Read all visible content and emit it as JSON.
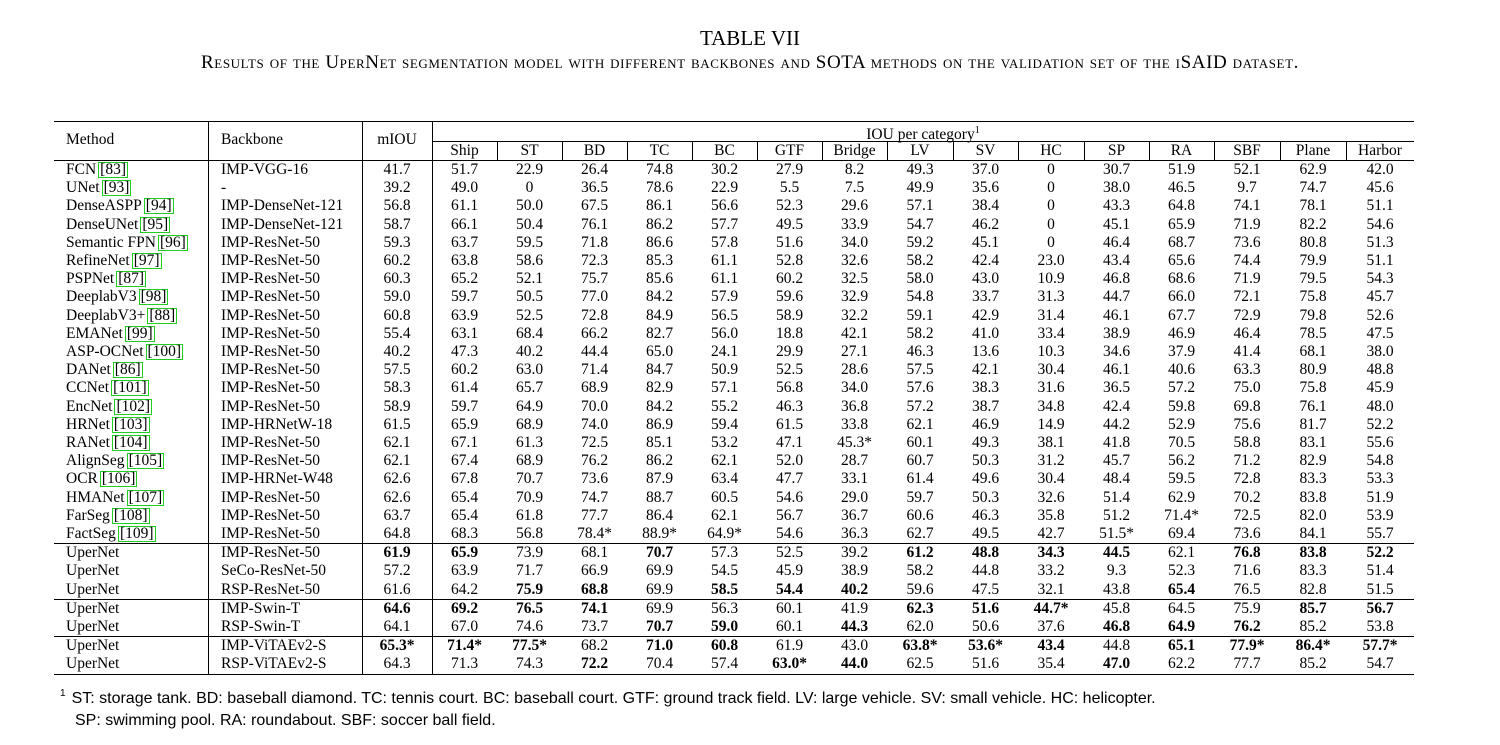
{
  "title": "TABLE VII",
  "caption": "Results of the UperNet segmentation model with different backbones and SOTA methods on the validation set of the iSAID dataset.",
  "headers": {
    "method": "Method",
    "backbone": "Backbone",
    "miou": "mIOU",
    "iou_group": "IOU per category",
    "iou_group_note": "1",
    "categories": [
      "Ship",
      "ST",
      "BD",
      "TC",
      "BC",
      "GTF",
      "Bridge",
      "LV",
      "SV",
      "HC",
      "SP",
      "RA",
      "SBF",
      "Plane",
      "Harbor"
    ]
  },
  "groups": [
    [
      {
        "method": "FCN",
        "ref": "83",
        "backbone": "IMP-VGG-16",
        "values": [
          "41.7",
          "51.7",
          "22.9",
          "26.4",
          "74.8",
          "30.2",
          "27.9",
          "8.2",
          "49.3",
          "37.0",
          "0",
          "30.7",
          "51.9",
          "52.1",
          "62.9",
          "42.0"
        ],
        "bold": []
      },
      {
        "method": "UNet",
        "ref": "93",
        "backbone": "-",
        "values": [
          "39.2",
          "49.0",
          "0",
          "36.5",
          "78.6",
          "22.9",
          "5.5",
          "7.5",
          "49.9",
          "35.6",
          "0",
          "38.0",
          "46.5",
          "9.7",
          "74.7",
          "45.6"
        ],
        "bold": []
      },
      {
        "method": "DenseASPP",
        "ref": "94",
        "backbone": "IMP-DenseNet-121",
        "values": [
          "56.8",
          "61.1",
          "50.0",
          "67.5",
          "86.1",
          "56.6",
          "52.3",
          "29.6",
          "57.1",
          "38.4",
          "0",
          "43.3",
          "64.8",
          "74.1",
          "78.1",
          "51.1"
        ],
        "bold": []
      },
      {
        "method": "DenseUNet",
        "ref": "95",
        "backbone": "IMP-DenseNet-121",
        "values": [
          "58.7",
          "66.1",
          "50.4",
          "76.1",
          "86.2",
          "57.7",
          "49.5",
          "33.9",
          "54.7",
          "46.2",
          "0",
          "45.1",
          "65.9",
          "71.9",
          "82.2",
          "54.6"
        ],
        "bold": []
      },
      {
        "method": "Semantic FPN",
        "ref": "96",
        "backbone": "IMP-ResNet-50",
        "values": [
          "59.3",
          "63.7",
          "59.5",
          "71.8",
          "86.6",
          "57.8",
          "51.6",
          "34.0",
          "59.2",
          "45.1",
          "0",
          "46.4",
          "68.7",
          "73.6",
          "80.8",
          "51.3"
        ],
        "bold": []
      },
      {
        "method": "RefineNet",
        "ref": "97",
        "backbone": "IMP-ResNet-50",
        "values": [
          "60.2",
          "63.8",
          "58.6",
          "72.3",
          "85.3",
          "61.1",
          "52.8",
          "32.6",
          "58.2",
          "42.4",
          "23.0",
          "43.4",
          "65.6",
          "74.4",
          "79.9",
          "51.1"
        ],
        "bold": []
      },
      {
        "method": "PSPNet",
        "ref": "87",
        "backbone": "IMP-ResNet-50",
        "values": [
          "60.3",
          "65.2",
          "52.1",
          "75.7",
          "85.6",
          "61.1",
          "60.2",
          "32.5",
          "58.0",
          "43.0",
          "10.9",
          "46.8",
          "68.6",
          "71.9",
          "79.5",
          "54.3"
        ],
        "bold": []
      },
      {
        "method": "DeeplabV3",
        "ref": "98",
        "backbone": "IMP-ResNet-50",
        "values": [
          "59.0",
          "59.7",
          "50.5",
          "77.0",
          "84.2",
          "57.9",
          "59.6",
          "32.9",
          "54.8",
          "33.7",
          "31.3",
          "44.7",
          "66.0",
          "72.1",
          "75.8",
          "45.7"
        ],
        "bold": []
      },
      {
        "method": "DeeplabV3+",
        "ref": "88",
        "backbone": "IMP-ResNet-50",
        "values": [
          "60.8",
          "63.9",
          "52.5",
          "72.8",
          "84.9",
          "56.5",
          "58.9",
          "32.2",
          "59.1",
          "42.9",
          "31.4",
          "46.1",
          "67.7",
          "72.9",
          "79.8",
          "52.6"
        ],
        "bold": []
      },
      {
        "method": "EMANet",
        "ref": "99",
        "backbone": "IMP-ResNet-50",
        "values": [
          "55.4",
          "63.1",
          "68.4",
          "66.2",
          "82.7",
          "56.0",
          "18.8",
          "42.1",
          "58.2",
          "41.0",
          "33.4",
          "38.9",
          "46.9",
          "46.4",
          "78.5",
          "47.5"
        ],
        "bold": []
      },
      {
        "method": "ASP-OCNet",
        "ref": "100",
        "backbone": "IMP-ResNet-50",
        "values": [
          "40.2",
          "47.3",
          "40.2",
          "44.4",
          "65.0",
          "24.1",
          "29.9",
          "27.1",
          "46.3",
          "13.6",
          "10.3",
          "34.6",
          "37.9",
          "41.4",
          "68.1",
          "38.0"
        ],
        "bold": []
      },
      {
        "method": "DANet",
        "ref": "86",
        "backbone": "IMP-ResNet-50",
        "values": [
          "57.5",
          "60.2",
          "63.0",
          "71.4",
          "84.7",
          "50.9",
          "52.5",
          "28.6",
          "57.5",
          "42.1",
          "30.4",
          "46.1",
          "40.6",
          "63.3",
          "80.9",
          "48.8"
        ],
        "bold": []
      },
      {
        "method": "CCNet",
        "ref": "101",
        "backbone": "IMP-ResNet-50",
        "values": [
          "58.3",
          "61.4",
          "65.7",
          "68.9",
          "82.9",
          "57.1",
          "56.8",
          "34.0",
          "57.6",
          "38.3",
          "31.6",
          "36.5",
          "57.2",
          "75.0",
          "75.8",
          "45.9"
        ],
        "bold": []
      },
      {
        "method": "EncNet",
        "ref": "102",
        "backbone": "IMP-ResNet-50",
        "values": [
          "58.9",
          "59.7",
          "64.9",
          "70.0",
          "84.2",
          "55.2",
          "46.3",
          "36.8",
          "57.2",
          "38.7",
          "34.8",
          "42.4",
          "59.8",
          "69.8",
          "76.1",
          "48.0"
        ],
        "bold": []
      },
      {
        "method": "HRNet",
        "ref": "103",
        "backbone": "IMP-HRNetW-18",
        "values": [
          "61.5",
          "65.9",
          "68.9",
          "74.0",
          "86.9",
          "59.4",
          "61.5",
          "33.8",
          "62.1",
          "46.9",
          "14.9",
          "44.2",
          "52.9",
          "75.6",
          "81.7",
          "52.2"
        ],
        "bold": []
      },
      {
        "method": "RANet",
        "ref": "104",
        "backbone": "IMP-ResNet-50",
        "values": [
          "62.1",
          "67.1",
          "61.3",
          "72.5",
          "85.1",
          "53.2",
          "47.1",
          "45.3*",
          "60.1",
          "49.3",
          "38.1",
          "41.8",
          "70.5",
          "58.8",
          "83.1",
          "55.6"
        ],
        "bold": []
      },
      {
        "method": "AlignSeg",
        "ref": "105",
        "backbone": "IMP-ResNet-50",
        "values": [
          "62.1",
          "67.4",
          "68.9",
          "76.2",
          "86.2",
          "62.1",
          "52.0",
          "28.7",
          "60.7",
          "50.3",
          "31.2",
          "45.7",
          "56.2",
          "71.2",
          "82.9",
          "54.8"
        ],
        "bold": []
      },
      {
        "method": "OCR",
        "ref": "106",
        "backbone": "IMP-HRNet-W48",
        "values": [
          "62.6",
          "67.8",
          "70.7",
          "73.6",
          "87.9",
          "63.4",
          "47.7",
          "33.1",
          "61.4",
          "49.6",
          "30.4",
          "48.4",
          "59.5",
          "72.8",
          "83.3",
          "53.3"
        ],
        "bold": []
      },
      {
        "method": "HMANet",
        "ref": "107",
        "backbone": "IMP-ResNet-50",
        "values": [
          "62.6",
          "65.4",
          "70.9",
          "74.7",
          "88.7",
          "60.5",
          "54.6",
          "29.0",
          "59.7",
          "50.3",
          "32.6",
          "51.4",
          "62.9",
          "70.2",
          "83.8",
          "51.9"
        ],
        "bold": []
      },
      {
        "method": "FarSeg",
        "ref": "108",
        "backbone": "IMP-ResNet-50",
        "values": [
          "63.7",
          "65.4",
          "61.8",
          "77.7",
          "86.4",
          "62.1",
          "56.7",
          "36.7",
          "60.6",
          "46.3",
          "35.8",
          "51.2",
          "71.4*",
          "72.5",
          "82.0",
          "53.9"
        ],
        "bold": []
      },
      {
        "method": "FactSeg",
        "ref": "109",
        "backbone": "IMP-ResNet-50",
        "values": [
          "64.8",
          "68.3",
          "56.8",
          "78.4*",
          "88.9*",
          "64.9*",
          "54.6",
          "36.3",
          "62.7",
          "49.5",
          "42.7",
          "51.5*",
          "69.4",
          "73.6",
          "84.1",
          "55.7"
        ],
        "bold": []
      }
    ],
    [
      {
        "method": "UperNet",
        "ref": "",
        "backbone": "IMP-ResNet-50",
        "values": [
          "61.9",
          "65.9",
          "73.9",
          "68.1",
          "70.7",
          "57.3",
          "52.5",
          "39.2",
          "61.2",
          "48.8",
          "34.3",
          "44.5",
          "62.1",
          "76.8",
          "83.8",
          "52.2"
        ],
        "bold": [
          0,
          1,
          4,
          8,
          9,
          10,
          11,
          13,
          14,
          15
        ]
      },
      {
        "method": "UperNet",
        "ref": "",
        "backbone": "SeCo-ResNet-50",
        "values": [
          "57.2",
          "63.9",
          "71.7",
          "66.9",
          "69.9",
          "54.5",
          "45.9",
          "38.9",
          "58.2",
          "44.8",
          "33.2",
          "9.3",
          "52.3",
          "71.6",
          "83.3",
          "51.4"
        ],
        "bold": []
      },
      {
        "method": "UperNet",
        "ref": "",
        "backbone": "RSP-ResNet-50",
        "values": [
          "61.6",
          "64.2",
          "75.9",
          "68.8",
          "69.9",
          "58.5",
          "54.4",
          "40.2",
          "59.6",
          "47.5",
          "32.1",
          "43.8",
          "65.4",
          "76.5",
          "82.8",
          "51.5"
        ],
        "bold": [
          2,
          3,
          5,
          6,
          7,
          12
        ]
      }
    ],
    [
      {
        "method": "UperNet",
        "ref": "",
        "backbone": "IMP-Swin-T",
        "values": [
          "64.6",
          "69.2",
          "76.5",
          "74.1",
          "69.9",
          "56.3",
          "60.1",
          "41.9",
          "62.3",
          "51.6",
          "44.7*",
          "45.8",
          "64.5",
          "75.9",
          "85.7",
          "56.7"
        ],
        "bold": [
          0,
          1,
          2,
          3,
          8,
          9,
          10,
          14,
          15
        ]
      },
      {
        "method": "UperNet",
        "ref": "",
        "backbone": "RSP-Swin-T",
        "values": [
          "64.1",
          "67.0",
          "74.6",
          "73.7",
          "70.7",
          "59.0",
          "60.1",
          "44.3",
          "62.0",
          "50.6",
          "37.6",
          "46.8",
          "64.9",
          "76.2",
          "85.2",
          "53.8"
        ],
        "bold": [
          4,
          5,
          7,
          11,
          12,
          13
        ]
      }
    ],
    [
      {
        "method": "UperNet",
        "ref": "",
        "backbone": "IMP-ViTAEv2-S",
        "values": [
          "65.3*",
          "71.4*",
          "77.5*",
          "68.2",
          "71.0",
          "60.8",
          "61.9",
          "43.0",
          "63.8*",
          "53.6*",
          "43.4",
          "44.8",
          "65.1",
          "77.9*",
          "86.4*",
          "57.7*"
        ],
        "bold": [
          0,
          1,
          2,
          4,
          5,
          8,
          9,
          10,
          12,
          13,
          14,
          15
        ]
      },
      {
        "method": "UperNet",
        "ref": "",
        "backbone": "RSP-ViTAEv2-S",
        "values": [
          "64.3",
          "71.3",
          "74.3",
          "72.2",
          "70.4",
          "57.4",
          "63.0*",
          "44.0",
          "62.5",
          "51.6",
          "35.4",
          "47.0",
          "62.2",
          "77.7",
          "85.2",
          "54.7"
        ],
        "bold": [
          3,
          6,
          7,
          11
        ]
      }
    ]
  ],
  "footnote": {
    "mark": "1",
    "line1": "ST: storage tank. BD: baseball diamond. TC: tennis court. BC: baseball court. GTF: ground track field. LV: large vehicle. SV: small vehicle. HC: helicopter.",
    "line2": "SP: swimming pool. RA: roundabout. SBF: soccer ball field."
  }
}
